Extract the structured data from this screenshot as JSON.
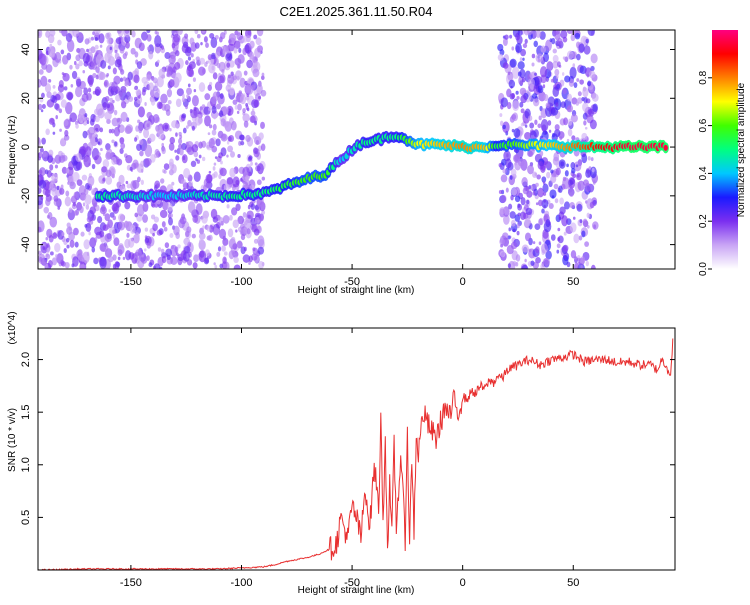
{
  "title": "C2E1.2025.361.11.50.R04",
  "chart_data": [
    {
      "type": "heatmap",
      "panel": "spectrogram",
      "xlabel": "Height of straight line (km)",
      "ylabel": "Frequency (Hz)",
      "xlim": [
        -192,
        96
      ],
      "ylim": [
        -50,
        48
      ],
      "xticks": [
        -150,
        -100,
        -50,
        0,
        50
      ],
      "yticks": [
        -40,
        -20,
        0,
        20,
        40
      ],
      "grid": false,
      "colorbar": {
        "label": "Normalized spectral amplitude",
        "range": [
          0,
          1
        ],
        "ticks": [
          0.0,
          0.2,
          0.4,
          0.6,
          0.8
        ],
        "colors": [
          "#ffffff",
          "#c9a5f5",
          "#7b2ff0",
          "#1a1aff",
          "#00c8ff",
          "#00ff80",
          "#40ff00",
          "#ffff00",
          "#ff8000",
          "#ff0000",
          "#ff0080"
        ]
      },
      "noise_regions": [
        {
          "x_from": -192,
          "x_to": -90,
          "level": 0.35
        },
        {
          "x_from": 17,
          "x_to": 60,
          "level": 0.45
        }
      ],
      "ridge": [
        {
          "x": -165,
          "y": -20,
          "a": 0.5
        },
        {
          "x": -150,
          "y": -20,
          "a": 0.45
        },
        {
          "x": -135,
          "y": -20,
          "a": 0.4
        },
        {
          "x": -120,
          "y": -20,
          "a": 0.45
        },
        {
          "x": -105,
          "y": -20,
          "a": 0.5
        },
        {
          "x": -90,
          "y": -19,
          "a": 0.5
        },
        {
          "x": -80,
          "y": -16,
          "a": 0.55
        },
        {
          "x": -70,
          "y": -13,
          "a": 0.6
        },
        {
          "x": -62,
          "y": -11,
          "a": 0.6
        },
        {
          "x": -55,
          "y": -5,
          "a": 0.4
        },
        {
          "x": -50,
          "y": -1,
          "a": 0.45
        },
        {
          "x": -45,
          "y": 2,
          "a": 0.5
        },
        {
          "x": -38,
          "y": 3,
          "a": 0.5
        },
        {
          "x": -30,
          "y": 5,
          "a": 0.5
        },
        {
          "x": -20,
          "y": 1,
          "a": 0.7
        },
        {
          "x": -10,
          "y": 1,
          "a": 0.75
        },
        {
          "x": 0,
          "y": 0,
          "a": 0.8
        },
        {
          "x": 10,
          "y": 0,
          "a": 0.75
        },
        {
          "x": 15,
          "y": 1,
          "a": 0.55
        },
        {
          "x": 62,
          "y": 0,
          "a": 0.9
        },
        {
          "x": 75,
          "y": 0,
          "a": 0.95
        },
        {
          "x": 93,
          "y": 0,
          "a": 0.95
        }
      ]
    },
    {
      "type": "line",
      "panel": "snr",
      "xlabel": "Height of straight line (km)",
      "ylabel": "SNR (10 * v/v)",
      "y_multiplier": "(x10^4)",
      "xlim": [
        -192,
        96
      ],
      "ylim": [
        0,
        2.3
      ],
      "xticks": [
        -150,
        -100,
        -50,
        0,
        50
      ],
      "yticks": [
        0.5,
        1.0,
        1.5,
        2.0
      ],
      "grid": false,
      "series": [
        {
          "color": "#e83030",
          "x": [
            -192,
            -170,
            -150,
            -130,
            -110,
            -100,
            -90,
            -85,
            -80,
            -75,
            -70,
            -65,
            -60,
            -57,
            -55,
            -52,
            -50,
            -48,
            -46,
            -44,
            -42,
            -40,
            -38,
            -37,
            -36,
            -35,
            -34,
            -33,
            -32,
            -31,
            -30,
            -28,
            -26,
            -25,
            -24,
            -23,
            -22,
            -21,
            -20,
            -18,
            -15,
            -12,
            -10,
            -8,
            -6,
            -4,
            -2,
            0,
            2,
            4,
            6,
            8,
            10,
            12,
            14,
            16,
            18,
            20,
            25,
            30,
            35,
            40,
            45,
            50,
            55,
            60,
            65,
            70,
            75,
            80,
            85,
            88,
            90,
            92,
            94,
            95
          ],
          "y": [
            0.0,
            0.01,
            0.01,
            0.01,
            0.01,
            0.02,
            0.03,
            0.05,
            0.08,
            0.1,
            0.12,
            0.15,
            0.2,
            0.25,
            0.5,
            0.3,
            0.6,
            0.5,
            0.3,
            0.8,
            0.4,
            1.0,
            0.6,
            1.4,
            0.5,
            1.25,
            0.2,
            0.8,
            0.3,
            1.2,
            0.4,
            1.1,
            0.3,
            1.35,
            0.2,
            1.1,
            0.35,
            1.3,
            1.1,
            1.5,
            1.35,
            1.25,
            1.4,
            1.55,
            1.45,
            1.6,
            1.5,
            1.65,
            1.62,
            1.7,
            1.68,
            1.75,
            1.72,
            1.8,
            1.78,
            1.85,
            1.82,
            1.9,
            1.95,
            2.0,
            1.95,
            2.0,
            2.02,
            2.05,
            1.98,
            2.0,
            2.0,
            1.97,
            1.98,
            1.95,
            1.95,
            1.9,
            2.0,
            1.95,
            1.85,
            2.2
          ]
        }
      ]
    }
  ]
}
